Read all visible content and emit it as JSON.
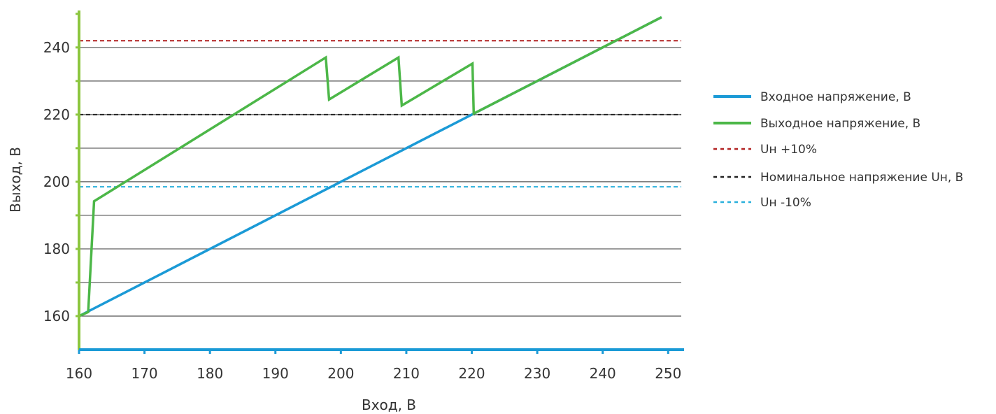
{
  "chart_data": {
    "type": "line",
    "title": "",
    "xlabel": "Вход, В",
    "ylabel": "Выход, В",
    "xlim": [
      160,
      252
    ],
    "ylim": [
      150,
      251
    ],
    "x_ticks": [
      160,
      170,
      180,
      190,
      200,
      210,
      220,
      230,
      240,
      250
    ],
    "y_ticks": [
      160,
      180,
      200,
      220,
      240
    ],
    "y_gridlines": [
      160,
      170,
      180,
      190,
      200,
      210,
      220,
      230,
      240
    ],
    "grid": true,
    "legend_position": "right",
    "series": [
      {
        "name": "Входное напряжение, В",
        "style": "solid",
        "color": "#1b9ad6",
        "points": [
          [
            160,
            160
          ],
          [
            220,
            220
          ],
          [
            249,
            249
          ]
        ]
      },
      {
        "name": "Выходное напряжение, В",
        "style": "solid",
        "color": "#4cb748",
        "points": [
          [
            160,
            160
          ],
          [
            161.4,
            161.2
          ],
          [
            162.3,
            194.2
          ],
          [
            197.7,
            237
          ],
          [
            198.2,
            224.5
          ],
          [
            208.8,
            237
          ],
          [
            209.3,
            222.7
          ],
          [
            220.1,
            235.2
          ],
          [
            220.3,
            220.3
          ],
          [
            249,
            249
          ]
        ]
      },
      {
        "name": "Uн +10%",
        "style": "dashed",
        "color": "#b22222",
        "y": 242
      },
      {
        "name": "Номинальное напряжение Uн, В",
        "style": "dashed",
        "color": "#222222",
        "y": 220
      },
      {
        "name": "Uн -10%",
        "style": "dashed",
        "color": "#2ab0dc",
        "y": 198.5
      }
    ],
    "axis_colors": {
      "y_axis": "#8cc63f",
      "x_axis": "#1b9ad6",
      "grid": "#555555"
    }
  }
}
